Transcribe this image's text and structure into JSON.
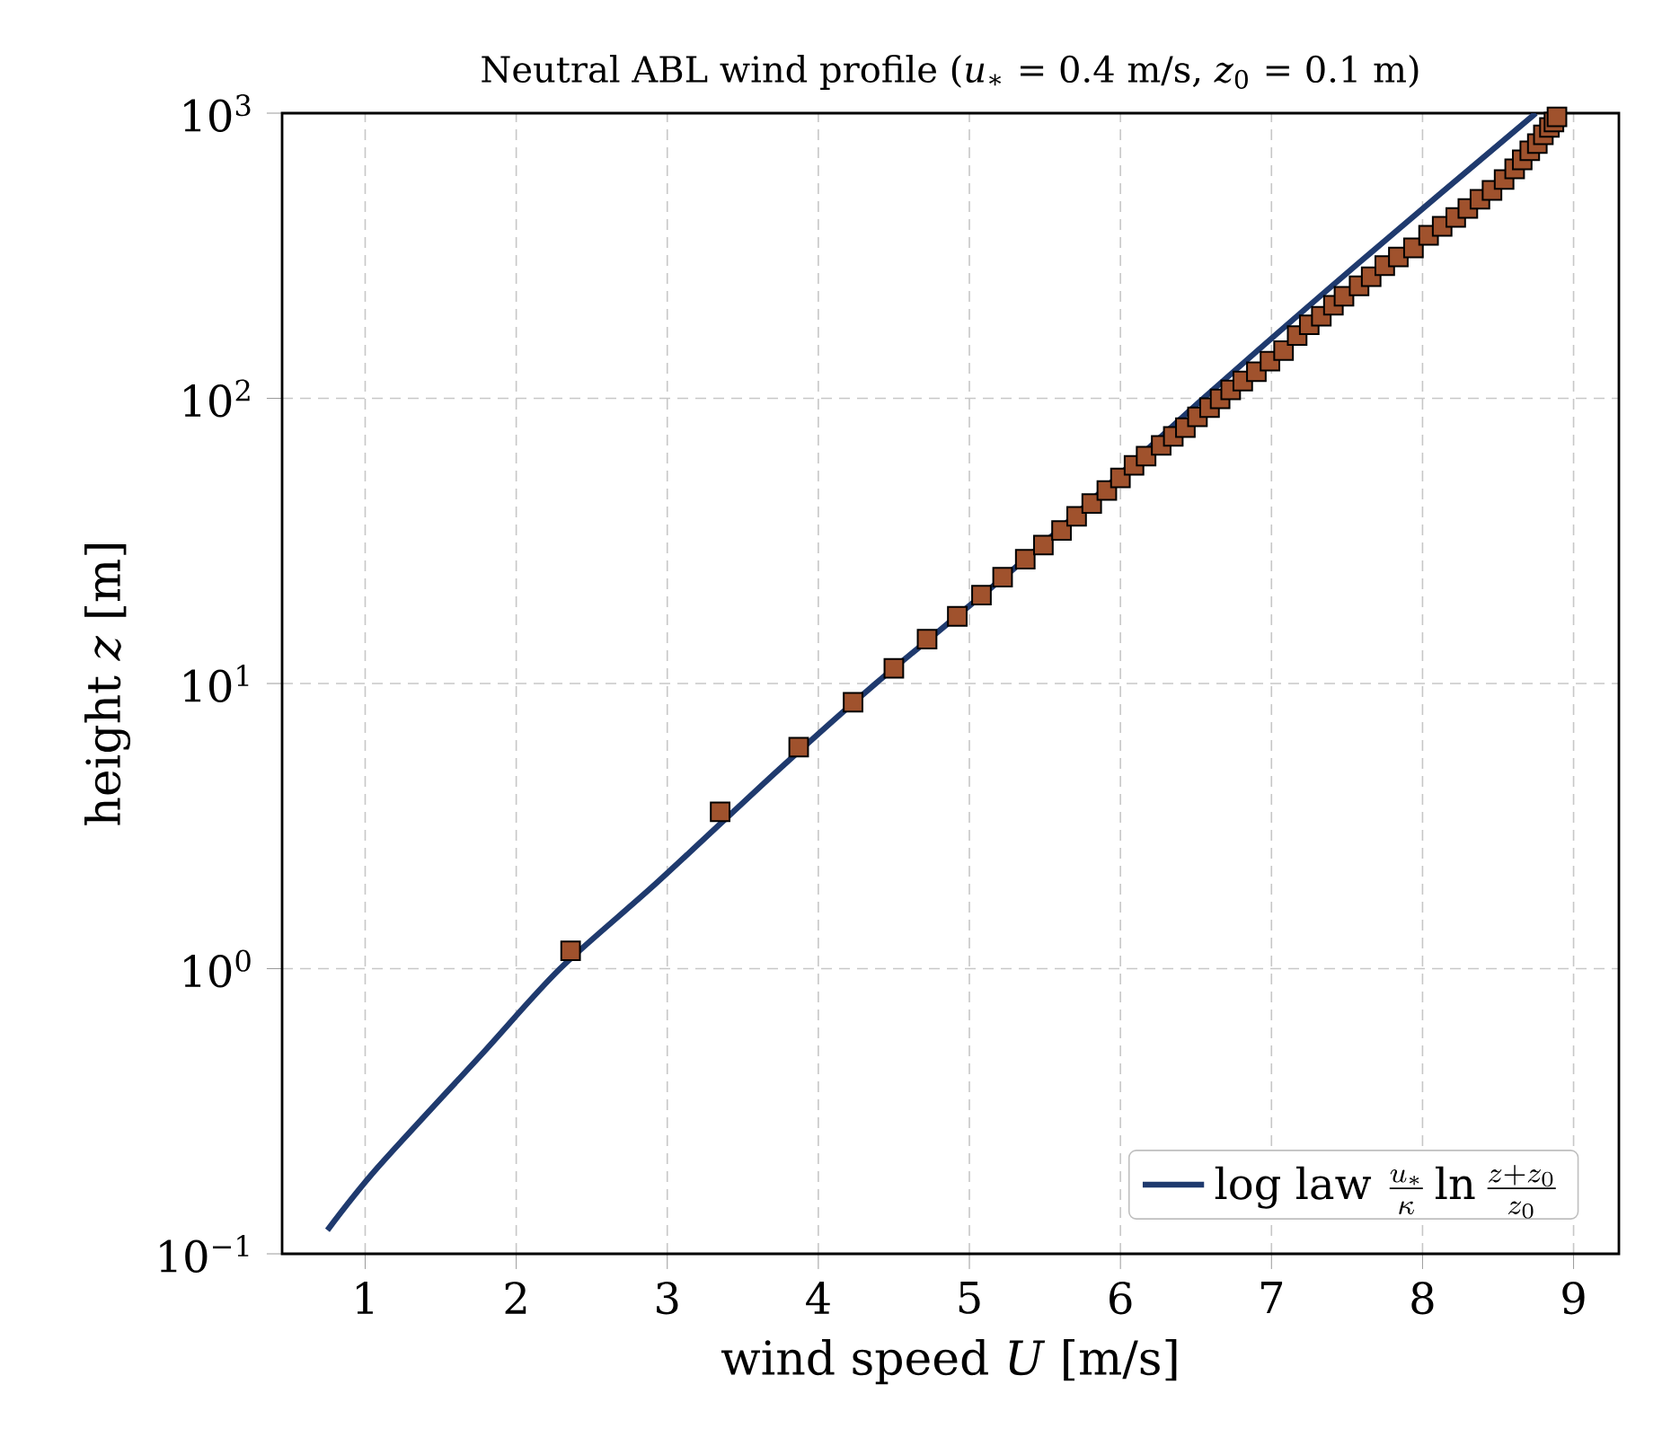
{
  "chart_data": {
    "type": "line",
    "title": "Neutral ABL wind profile (*u*$_{∗}$ = 0.4 m/s, *z*$_{0}$ = 0.1 m)",
    "xlabel": "wind speed *U* [m/s]",
    "ylabel": "height *z* [m]",
    "series": [
      {
        "name": "\\mathrm{log\\ law}\\ \\frac{u_*}{\\kappa}\\ln\\frac{z+z_0}{z_0}",
        "color": "#1f3a6e",
        "line_style": "solid",
        "marker": "none",
        "x": [
          0.75,
          1.08,
          1.77,
          2.29,
          2.93,
          3.74,
          4.38,
          5.46,
          6.55,
          7.57,
          8.75
        ],
        "values": [
          0.121,
          0.2,
          0.5,
          1,
          2,
          5,
          10,
          30,
          100,
          296,
          1000
        ]
      },
      {
        "type": "scatter",
        "color": "#a0522d",
        "marker": "square",
        "x": [
          2.36,
          3.35,
          3.87,
          4.23,
          4.5,
          4.72,
          4.92,
          5.08,
          5.22,
          5.37,
          5.49,
          5.61,
          5.71,
          5.81,
          5.91,
          6.0,
          6.09,
          6.17,
          6.27,
          6.35,
          6.43,
          6.51,
          6.59,
          6.66,
          6.73,
          6.81,
          6.9,
          6.99,
          7.08,
          7.17,
          7.25,
          7.33,
          7.41,
          7.48,
          7.58,
          7.66,
          7.75,
          7.84,
          7.94,
          8.04,
          8.13,
          8.22,
          8.3,
          8.38,
          8.46,
          8.54,
          8.61,
          8.66,
          8.71,
          8.76,
          8.8,
          8.84,
          8.87,
          8.89
        ],
        "values": [
          1.155,
          3.55,
          5.98,
          8.59,
          11.3,
          14.3,
          17.2,
          20.4,
          23.6,
          27.3,
          30.6,
          34.4,
          38.6,
          42.8,
          47.5,
          52.6,
          58.2,
          62.7,
          68.4,
          73.5,
          79.0,
          86.1,
          92.7,
          99.6,
          107,
          115,
          124,
          135,
          147,
          166,
          181,
          194,
          212,
          228,
          248,
          267,
          292,
          313,
          337,
          373,
          401,
          431,
          463,
          499,
          536,
          585,
          638,
          686,
          738,
          782,
          840,
          891,
          931,
          971
        ]
      }
    ],
    "xlim": [
      0.45,
      9.3
    ],
    "xticks": [
      1,
      2,
      3,
      4,
      5,
      6,
      7,
      8,
      9
    ],
    "ylim": [
      0.1,
      1000
    ],
    "yticks": [
      {
        "value": 0.1,
        "label": "10$^{−1}$"
      },
      {
        "value": 1,
        "label": "10$^{0}$"
      },
      {
        "value": 10,
        "label": "10$^{1}$"
      },
      {
        "value": 100,
        "label": "10$^{2}$"
      },
      {
        "value": 1000,
        "label": "10$^{3}$"
      }
    ],
    "log": "y",
    "grid": true,
    "legend": "bottom right"
  }
}
